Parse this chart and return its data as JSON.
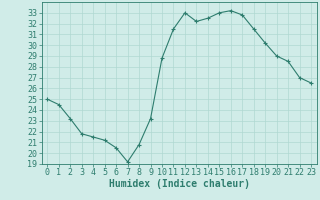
{
  "x": [
    0,
    1,
    2,
    3,
    4,
    5,
    6,
    7,
    8,
    9,
    10,
    11,
    12,
    13,
    14,
    15,
    16,
    17,
    18,
    19,
    20,
    21,
    22,
    23
  ],
  "y": [
    25.0,
    24.5,
    23.2,
    21.8,
    21.5,
    21.2,
    20.5,
    19.2,
    20.8,
    23.2,
    28.8,
    31.5,
    33.0,
    32.2,
    32.5,
    33.0,
    33.2,
    32.8,
    31.5,
    30.2,
    29.0,
    28.5,
    27.0,
    26.5
  ],
  "line_color": "#2e7d6e",
  "marker": "+",
  "bg_color": "#d0ece8",
  "grid_color": "#b0d8d2",
  "xlabel": "Humidex (Indice chaleur)",
  "ylim": [
    19,
    34
  ],
  "xlim": [
    -0.5,
    23.5
  ],
  "yticks": [
    19,
    20,
    21,
    22,
    23,
    24,
    25,
    26,
    27,
    28,
    29,
    30,
    31,
    32,
    33
  ],
  "xticks": [
    0,
    1,
    2,
    3,
    4,
    5,
    6,
    7,
    8,
    9,
    10,
    11,
    12,
    13,
    14,
    15,
    16,
    17,
    18,
    19,
    20,
    21,
    22,
    23
  ],
  "axis_color": "#2e7d6e",
  "tick_color": "#2e7d6e",
  "label_fontsize": 7,
  "tick_fontsize": 6
}
